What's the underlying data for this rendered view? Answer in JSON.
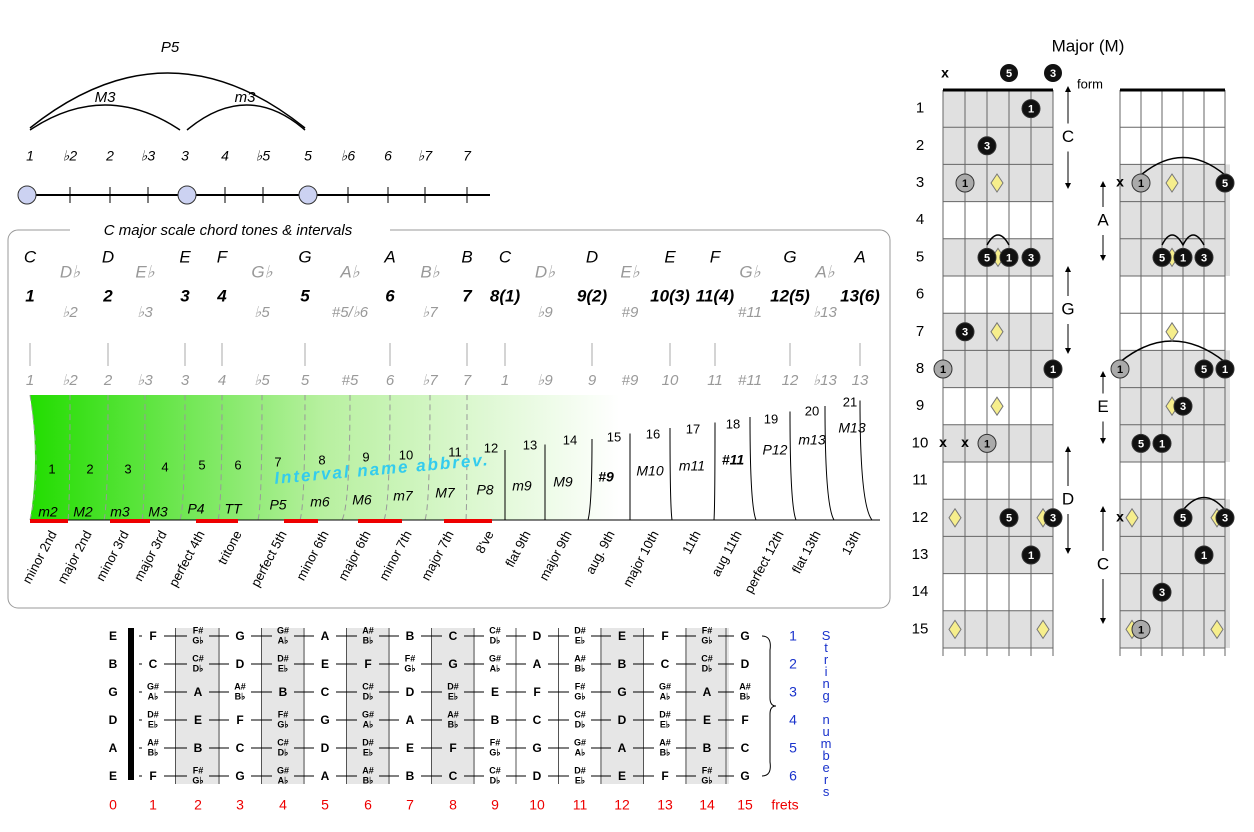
{
  "top": {
    "arcs": [
      "P5",
      "M3",
      "m3"
    ],
    "degrees": [
      "1",
      "♭2",
      "2",
      "♭3",
      "3",
      "4",
      "♭5",
      "5",
      "♭6",
      "6",
      "♭7",
      "7"
    ]
  },
  "panel": {
    "title": "C major scale chord tones & intervals",
    "columns": [
      {
        "note": "C",
        "degree": "1",
        "in_scale": true
      },
      {
        "note": "D♭",
        "degree": "♭2",
        "in_scale": false
      },
      {
        "note": "D",
        "degree": "2",
        "in_scale": true
      },
      {
        "note": "E♭",
        "degree": "♭3",
        "in_scale": false
      },
      {
        "note": "E",
        "degree": "3",
        "in_scale": true
      },
      {
        "note": "F",
        "degree": "4",
        "in_scale": true
      },
      {
        "note": "G♭",
        "degree": "♭5",
        "in_scale": false
      },
      {
        "note": "G",
        "degree": "5",
        "in_scale": true
      },
      {
        "note": "A♭",
        "degree": "#5/♭6",
        "in_scale": false
      },
      {
        "note": "A",
        "degree": "6",
        "in_scale": true
      },
      {
        "note": "B♭",
        "degree": "♭7",
        "in_scale": false
      },
      {
        "note": "B",
        "degree": "7",
        "in_scale": true
      },
      {
        "note": "C",
        "degree": "8(1)",
        "in_scale": true
      },
      {
        "note": "D♭",
        "degree": "♭9",
        "in_scale": false
      },
      {
        "note": "D",
        "degree": "9(2)",
        "in_scale": true
      },
      {
        "note": "E♭",
        "degree": "#9",
        "in_scale": false
      },
      {
        "note": "E",
        "degree": "10(3)",
        "in_scale": true
      },
      {
        "note": "F",
        "degree": "11(4)",
        "in_scale": true
      },
      {
        "note": "G♭",
        "degree": "#11",
        "in_scale": false
      },
      {
        "note": "G",
        "degree": "12(5)",
        "in_scale": true
      },
      {
        "note": "A♭",
        "degree": "♭13",
        "in_scale": false
      },
      {
        "note": "A",
        "degree": "13(6)",
        "in_scale": true
      }
    ],
    "lower_degrees": [
      "1",
      "♭2",
      "2",
      "♭3",
      "3",
      "4",
      "♭5",
      "5",
      "#5",
      "6",
      "♭7",
      "7",
      "1",
      "♭9",
      "9",
      "#9",
      "10",
      "11",
      "#11",
      "12",
      "♭13",
      "13"
    ],
    "intervals": [
      {
        "number": 1,
        "abbrev": "m2",
        "name": "minor 2nd"
      },
      {
        "number": 2,
        "abbrev": "M2",
        "name": "major 2nd"
      },
      {
        "number": 3,
        "abbrev": "m3",
        "name": "minor 3rd"
      },
      {
        "number": 4,
        "abbrev": "M3",
        "name": "major 3rd"
      },
      {
        "number": 5,
        "abbrev": "P4",
        "name": "perfect 4th"
      },
      {
        "number": 6,
        "abbrev": "TT",
        "name": "tritone"
      },
      {
        "number": 7,
        "abbrev": "P5",
        "name": "perfect 5th"
      },
      {
        "number": 8,
        "abbrev": "m6",
        "name": "minor 6th"
      },
      {
        "number": 9,
        "abbrev": "M6",
        "name": "major 6th"
      },
      {
        "number": 10,
        "abbrev": "m7",
        "name": "minor 7th"
      },
      {
        "number": 11,
        "abbrev": "M7",
        "name": "major 7th"
      },
      {
        "number": 12,
        "abbrev": "P8",
        "name": "8've"
      },
      {
        "number": 13,
        "abbrev": "m9",
        "name": "flat 9th"
      },
      {
        "number": 14,
        "abbrev": "M9",
        "name": "major 9th"
      },
      {
        "number": 15,
        "abbrev": "#9",
        "name": "aug. 9th"
      },
      {
        "number": 16,
        "abbrev": "M10",
        "name": "major 10th"
      },
      {
        "number": 17,
        "abbrev": "m11",
        "name": "11th"
      },
      {
        "number": 18,
        "abbrev": "#11",
        "name": "aug 11th"
      },
      {
        "number": 19,
        "abbrev": "P12",
        "name": "perfect 12th"
      },
      {
        "number": 20,
        "abbrev": "m13",
        "name": "flat 13th"
      },
      {
        "number": 21,
        "abbrev": "M13",
        "name": "13th"
      }
    ],
    "annotation": "Interval name abbrev."
  },
  "fretboard": {
    "strings": [
      {
        "number": 1,
        "notes": [
          "E",
          "F",
          {
            "sharp": "F#",
            "flat": "G♭"
          },
          "G",
          {
            "sharp": "G#",
            "flat": "A♭"
          },
          "A",
          {
            "sharp": "A#",
            "flat": "B♭"
          },
          "B",
          "C",
          {
            "sharp": "C#",
            "flat": "D♭"
          },
          "D",
          {
            "sharp": "D#",
            "flat": "E♭"
          },
          "E",
          "F",
          {
            "sharp": "F#",
            "flat": "G♭"
          },
          "G"
        ]
      },
      {
        "number": 2,
        "notes": [
          "B",
          "C",
          {
            "sharp": "C#",
            "flat": "D♭"
          },
          "D",
          {
            "sharp": "D#",
            "flat": "E♭"
          },
          "E",
          "F",
          {
            "sharp": "F#",
            "flat": "G♭"
          },
          "G",
          {
            "sharp": "G#",
            "flat": "A♭"
          },
          "A",
          {
            "sharp": "A#",
            "flat": "B♭"
          },
          "B",
          "C",
          {
            "sharp": "C#",
            "flat": "D♭"
          },
          "D"
        ]
      },
      {
        "number": 3,
        "notes": [
          "G",
          {
            "sharp": "G#",
            "flat": "A♭"
          },
          "A",
          {
            "sharp": "A#",
            "flat": "B♭"
          },
          "B",
          "C",
          {
            "sharp": "C#",
            "flat": "D♭"
          },
          "D",
          {
            "sharp": "D#",
            "flat": "E♭"
          },
          "E",
          "F",
          {
            "sharp": "F#",
            "flat": "G♭"
          },
          "G",
          {
            "sharp": "G#",
            "flat": "A♭"
          },
          "A",
          {
            "sharp": "A#",
            "flat": "B♭"
          }
        ]
      },
      {
        "number": 4,
        "notes": [
          "D",
          {
            "sharp": "D#",
            "flat": "E♭"
          },
          "E",
          "F",
          {
            "sharp": "F#",
            "flat": "G♭"
          },
          "G",
          {
            "sharp": "G#",
            "flat": "A♭"
          },
          "A",
          {
            "sharp": "A#",
            "flat": "B♭"
          },
          "B",
          "C",
          {
            "sharp": "C#",
            "flat": "D♭"
          },
          "D",
          {
            "sharp": "D#",
            "flat": "E♭"
          },
          "E",
          "F"
        ]
      },
      {
        "number": 5,
        "notes": [
          "A",
          {
            "sharp": "A#",
            "flat": "B♭"
          },
          "B",
          "C",
          {
            "sharp": "C#",
            "flat": "D♭"
          },
          "D",
          {
            "sharp": "D#",
            "flat": "E♭"
          },
          "E",
          "F",
          {
            "sharp": "F#",
            "flat": "G♭"
          },
          "G",
          {
            "sharp": "G#",
            "flat": "A♭"
          },
          "A",
          {
            "sharp": "A#",
            "flat": "B♭"
          },
          "B",
          "C"
        ]
      },
      {
        "number": 6,
        "notes": [
          "E",
          "F",
          {
            "sharp": "F#",
            "flat": "G♭"
          },
          "G",
          {
            "sharp": "G#",
            "flat": "A♭"
          },
          "A",
          {
            "sharp": "A#",
            "flat": "B♭"
          },
          "B",
          "C",
          {
            "sharp": "C#",
            "flat": "D♭"
          },
          "D",
          {
            "sharp": "D#",
            "flat": "E♭"
          },
          "E",
          "F",
          {
            "sharp": "F#",
            "flat": "G♭"
          },
          "G"
        ]
      }
    ],
    "string_label": "String numbers",
    "frets": [
      0,
      1,
      2,
      3,
      4,
      5,
      6,
      7,
      8,
      9,
      10,
      11,
      12,
      13,
      14,
      15
    ],
    "frets_label": "frets"
  },
  "forms": {
    "title": "Major (M)",
    "top_marks": [
      "x",
      "5",
      "3"
    ],
    "form_label": "form",
    "fret_numbers": [
      1,
      2,
      3,
      4,
      5,
      6,
      7,
      8,
      9,
      10,
      11,
      12,
      13,
      14,
      15
    ],
    "shapes": [
      "C",
      "G",
      "D",
      "A",
      "E",
      "C"
    ],
    "dots": [
      "1",
      "3",
      "1",
      "5",
      "1",
      "3",
      "3",
      "1",
      "1",
      "x",
      "x",
      "1",
      "5",
      "3",
      "1",
      "x",
      "1",
      "5",
      "5",
      "1",
      "3",
      "1",
      "5",
      "1",
      "3",
      "5",
      "1",
      "x",
      "5",
      "3",
      "1",
      "3",
      "1"
    ]
  }
}
